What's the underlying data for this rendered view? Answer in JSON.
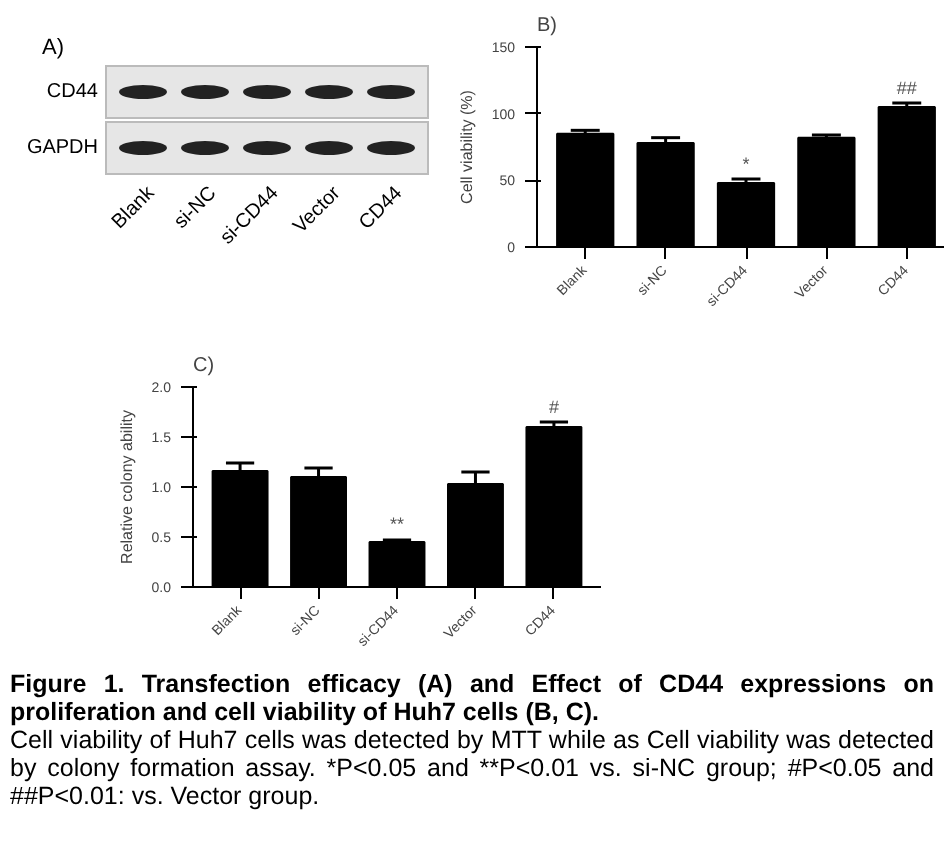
{
  "chart_data": [
    {
      "type": "other",
      "title": "A)",
      "categories": [
        "Blank",
        "si-NC",
        "si-CD44",
        "Vector",
        "CD44"
      ],
      "annotations": [
        "CD44",
        "GAPDH"
      ]
    },
    {
      "type": "bar",
      "title": "B)",
      "ylabel": "Cell viability (%)",
      "categories": [
        "Blank",
        "si-NC",
        "si-CD44",
        "Vector",
        "CD44"
      ],
      "values": [
        85,
        78,
        48,
        82,
        105
      ],
      "errors": [
        2.5,
        4,
        3,
        2,
        3
      ],
      "color": "#000000",
      "ylim": [
        0,
        150
      ],
      "yticks": [
        0,
        50,
        100,
        150
      ],
      "grid": false,
      "annotations": [
        {
          "text": "*",
          "x": "si-CD44",
          "y": 55
        },
        {
          "text": "##",
          "x": "CD44",
          "y": 112
        }
      ]
    },
    {
      "type": "bar",
      "title": "C)",
      "ylabel": "Relative colony ability",
      "categories": [
        "Blank",
        "si-NC",
        "si-CD44",
        "Vector",
        "CD44"
      ],
      "values": [
        1.16,
        1.1,
        0.45,
        1.03,
        1.6
      ],
      "errors": [
        0.08,
        0.09,
        0.02,
        0.12,
        0.05
      ],
      "color": "#000000",
      "ylim": [
        0,
        2
      ],
      "yticks": [
        {
          "value": 0,
          "label": "0.0"
        },
        {
          "value": 0.5,
          "label": "0.5"
        },
        {
          "value": 1,
          "label": "1.0"
        },
        {
          "value": 1.5,
          "label": "1.5"
        },
        {
          "value": 2,
          "label": "2.0"
        }
      ],
      "grid": false,
      "annotations": [
        {
          "text": "**",
          "x": "si-CD44",
          "y": 0.53
        },
        {
          "text": "#",
          "x": "CD44",
          "y": 1.7
        },
        "Figure 1. Transfection efficacy (A) and Effect of CD44 expressions on proliferation and cell viability of Huh7 cells (B, C).",
        "Cell viability of Huh7 cells was detected by MTT while as Cell viability was detected by colony formation assay. *P<0.05 and **P<0.01 vs. si-NC group; #P<0.05 and ##P<0.01: vs. Vector group."
      ]
    }
  ]
}
